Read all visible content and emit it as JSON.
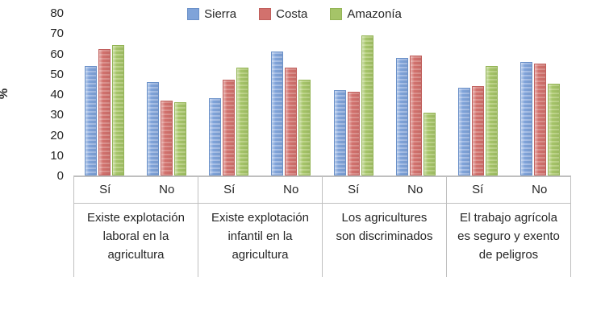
{
  "chart_data": {
    "type": "bar",
    "title": "",
    "ylabel": "%",
    "xlabel": "",
    "ylim": [
      0,
      80
    ],
    "yticks": [
      0,
      10,
      20,
      30,
      40,
      50,
      60,
      70,
      80
    ],
    "grid": false,
    "legend_position": "top",
    "answers": [
      "Sí",
      "No"
    ],
    "groups": [
      {
        "label": "Existe explotación laboral en la agricultura",
        "label_lines": [
          "Existe explotación",
          "laboral en la",
          "agricultura"
        ]
      },
      {
        "label": "Existe explotación infantil en la agricultura",
        "label_lines": [
          "Existe explotación",
          "infantil en la",
          "agricultura"
        ]
      },
      {
        "label": "Los agricultures son discriminados",
        "label_lines": [
          "Los agricultures",
          "son discriminados"
        ]
      },
      {
        "label": "El trabajo agrícola es seguro y exento de peligros",
        "label_lines": [
          "El trabajo agrícola",
          "es seguro y exento",
          "de peligros"
        ]
      }
    ],
    "value_order": [
      "group1-Sí",
      "group1-No",
      "group2-Sí",
      "group2-No",
      "group3-Sí",
      "group3-No",
      "group4-Sí",
      "group4-No"
    ],
    "series": [
      {
        "name": "Sierra",
        "color": "#7fa3d9",
        "stripe_color": "#a8c0e8",
        "border_color": "#6a90c8",
        "values": [
          54,
          46,
          38,
          61,
          42,
          58,
          43,
          56
        ]
      },
      {
        "name": "Costa",
        "color": "#d2716d",
        "stripe_color": "#de938f",
        "border_color": "#c05f5c",
        "values": [
          62,
          37,
          47,
          53,
          41,
          59,
          44,
          55
        ]
      },
      {
        "name": "Amazonía",
        "color": "#a5c468",
        "stripe_color": "#bfd68b",
        "border_color": "#93b455",
        "values": [
          64,
          36,
          53,
          47,
          69,
          31,
          54,
          45
        ]
      }
    ],
    "axis_line_color": "#bfbfbf",
    "text_color": "#262626"
  }
}
